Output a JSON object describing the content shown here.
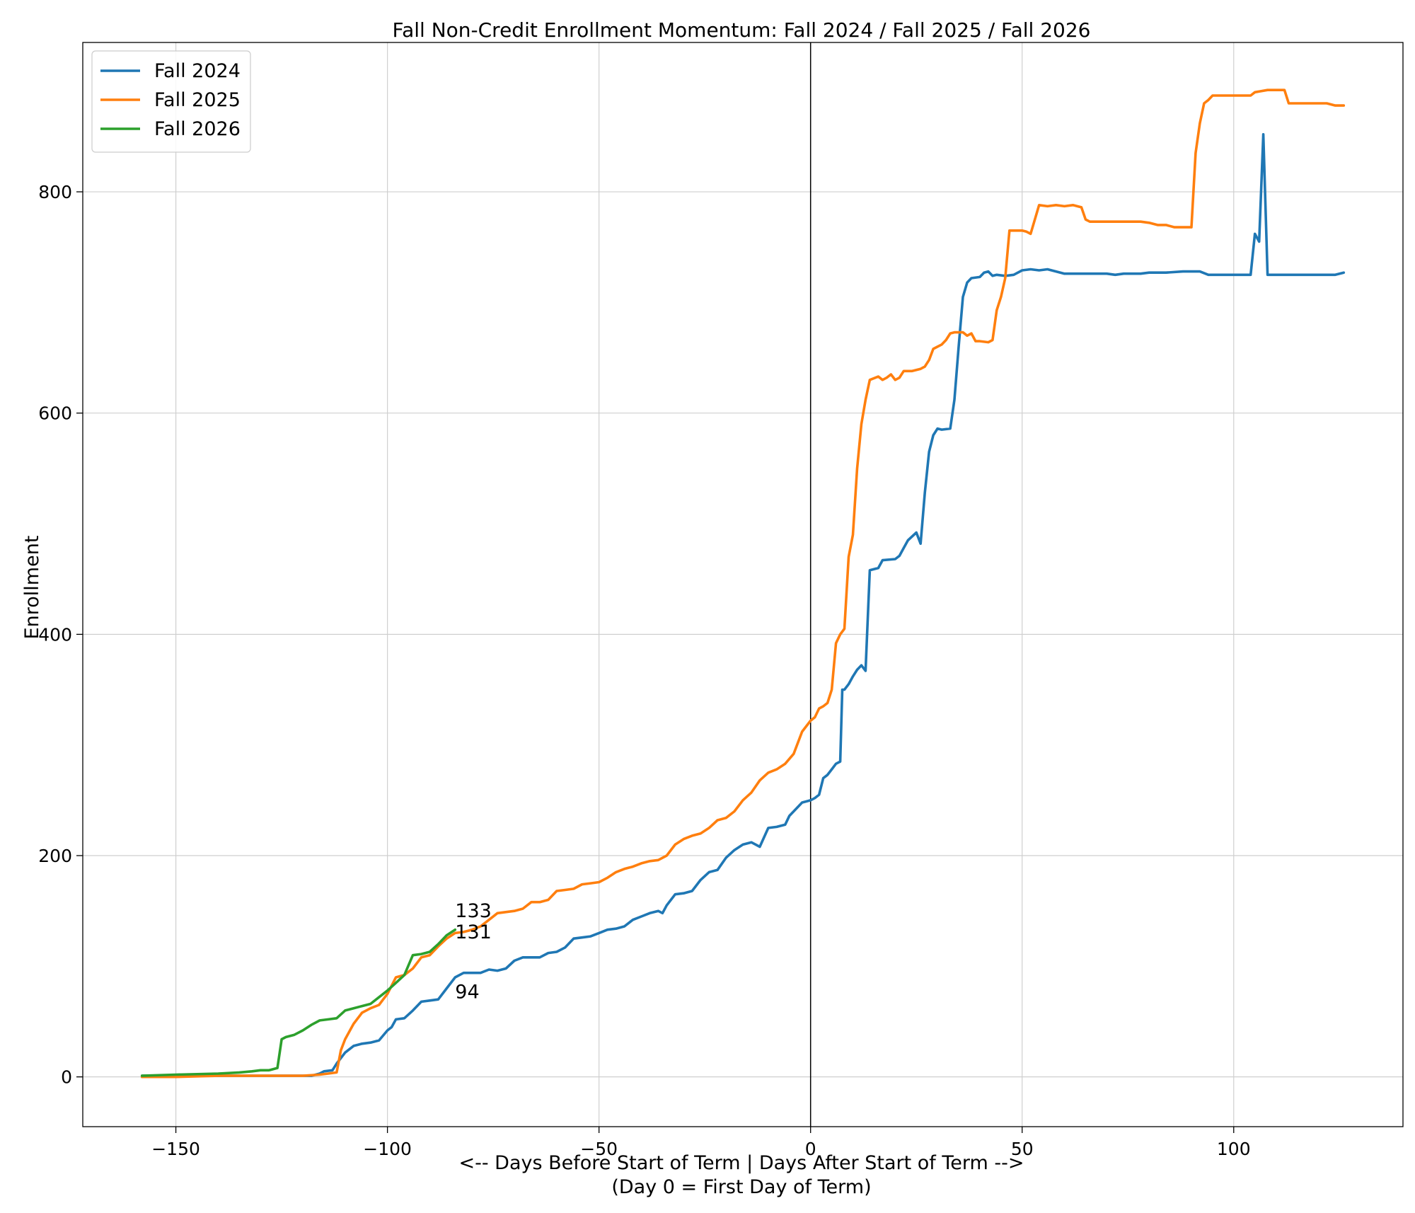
{
  "chart_data": {
    "type": "line",
    "title": "Fall Non-Credit Enrollment Momentum: Fall 2024 / Fall 2025 / Fall 2026",
    "xlabel_line1": "<-- Days Before Start of Term   |   Days After Start of Term -->",
    "xlabel_line2": "(Day 0 = First Day of Term)",
    "ylabel": "Enrollment",
    "xlim": [
      -172,
      140
    ],
    "ylim": [
      -45,
      935
    ],
    "xticks": [
      -150,
      -100,
      -50,
      0,
      50,
      100
    ],
    "xtick_labels": [
      "−150",
      "−100",
      "−50",
      "0",
      "50",
      "100"
    ],
    "yticks": [
      0,
      200,
      400,
      600,
      800
    ],
    "ytick_labels": [
      "0",
      "200",
      "400",
      "600",
      "800"
    ],
    "grid": true,
    "legend_position": "top-left",
    "vertical_reference_line_x": 0,
    "series": [
      {
        "name": "Fall 2024",
        "color": "#1f77b4",
        "points": [
          [
            -158,
            1
          ],
          [
            -150,
            1
          ],
          [
            -140,
            1
          ],
          [
            -130,
            1
          ],
          [
            -120,
            1
          ],
          [
            -118,
            1
          ],
          [
            -116,
            3
          ],
          [
            -115,
            5
          ],
          [
            -113,
            6
          ],
          [
            -112,
            12
          ],
          [
            -110,
            22
          ],
          [
            -108,
            28
          ],
          [
            -106,
            30
          ],
          [
            -104,
            31
          ],
          [
            -102,
            33
          ],
          [
            -100,
            42
          ],
          [
            -99,
            45
          ],
          [
            -98,
            52
          ],
          [
            -96,
            53
          ],
          [
            -94,
            60
          ],
          [
            -92,
            68
          ],
          [
            -90,
            69
          ],
          [
            -88,
            70
          ],
          [
            -86,
            80
          ],
          [
            -84,
            90
          ],
          [
            -82,
            94
          ],
          [
            -78,
            94
          ],
          [
            -76,
            97
          ],
          [
            -74,
            96
          ],
          [
            -72,
            98
          ],
          [
            -70,
            105
          ],
          [
            -68,
            108
          ],
          [
            -64,
            108
          ],
          [
            -62,
            112
          ],
          [
            -60,
            113
          ],
          [
            -58,
            117
          ],
          [
            -56,
            125
          ],
          [
            -54,
            126
          ],
          [
            -52,
            127
          ],
          [
            -50,
            130
          ],
          [
            -48,
            133
          ],
          [
            -46,
            134
          ],
          [
            -44,
            136
          ],
          [
            -42,
            142
          ],
          [
            -40,
            145
          ],
          [
            -38,
            148
          ],
          [
            -36,
            150
          ],
          [
            -35,
            148
          ],
          [
            -34,
            155
          ],
          [
            -32,
            165
          ],
          [
            -30,
            166
          ],
          [
            -28,
            168
          ],
          [
            -26,
            178
          ],
          [
            -24,
            185
          ],
          [
            -22,
            187
          ],
          [
            -20,
            198
          ],
          [
            -18,
            205
          ],
          [
            -16,
            210
          ],
          [
            -14,
            212
          ],
          [
            -12,
            208
          ],
          [
            -10,
            225
          ],
          [
            -8,
            226
          ],
          [
            -6,
            228
          ],
          [
            -5,
            236
          ],
          [
            -4,
            240
          ],
          [
            -2,
            248
          ],
          [
            0,
            250
          ],
          [
            1,
            252
          ],
          [
            2,
            255
          ],
          [
            3,
            270
          ],
          [
            4,
            273
          ],
          [
            5,
            278
          ],
          [
            6,
            283
          ],
          [
            7,
            285
          ],
          [
            7.5,
            350
          ],
          [
            8,
            350
          ],
          [
            9,
            355
          ],
          [
            10,
            362
          ],
          [
            11,
            368
          ],
          [
            12,
            372
          ],
          [
            13,
            367
          ],
          [
            14,
            458
          ],
          [
            16,
            460
          ],
          [
            17,
            467
          ],
          [
            20,
            468
          ],
          [
            21,
            471
          ],
          [
            22,
            478
          ],
          [
            23,
            485
          ],
          [
            25,
            492
          ],
          [
            26,
            482
          ],
          [
            27,
            528
          ],
          [
            28,
            565
          ],
          [
            29,
            580
          ],
          [
            30,
            586
          ],
          [
            31,
            585
          ],
          [
            33,
            586
          ],
          [
            34,
            612
          ],
          [
            35,
            660
          ],
          [
            36,
            705
          ],
          [
            37,
            718
          ],
          [
            38,
            722
          ],
          [
            40,
            723
          ],
          [
            41,
            727
          ],
          [
            42,
            728
          ],
          [
            43,
            724
          ],
          [
            44,
            725
          ],
          [
            46,
            724
          ],
          [
            48,
            725
          ],
          [
            50,
            729
          ],
          [
            52,
            730
          ],
          [
            54,
            729
          ],
          [
            56,
            730
          ],
          [
            58,
            728
          ],
          [
            60,
            726
          ],
          [
            64,
            726
          ],
          [
            70,
            726
          ],
          [
            72,
            725
          ],
          [
            74,
            726
          ],
          [
            78,
            726
          ],
          [
            80,
            727
          ],
          [
            84,
            727
          ],
          [
            88,
            728
          ],
          [
            92,
            728
          ],
          [
            94,
            725
          ],
          [
            100,
            725
          ],
          [
            104,
            725
          ],
          [
            105,
            762
          ],
          [
            106,
            755
          ],
          [
            107,
            852
          ],
          [
            108,
            725
          ],
          [
            112,
            725
          ],
          [
            116,
            725
          ],
          [
            120,
            725
          ],
          [
            124,
            725
          ],
          [
            126,
            727
          ]
        ]
      },
      {
        "name": "Fall 2025",
        "color": "#ff7f0e",
        "points": [
          [
            -158,
            0
          ],
          [
            -150,
            0
          ],
          [
            -140,
            1
          ],
          [
            -130,
            1
          ],
          [
            -120,
            1
          ],
          [
            -116,
            2
          ],
          [
            -114,
            3
          ],
          [
            -112,
            4
          ],
          [
            -111,
            24
          ],
          [
            -110,
            34
          ],
          [
            -108,
            48
          ],
          [
            -106,
            58
          ],
          [
            -104,
            62
          ],
          [
            -102,
            65
          ],
          [
            -101,
            70
          ],
          [
            -100,
            75
          ],
          [
            -98,
            90
          ],
          [
            -96,
            92
          ],
          [
            -94,
            98
          ],
          [
            -92,
            108
          ],
          [
            -90,
            110
          ],
          [
            -88,
            118
          ],
          [
            -86,
            125
          ],
          [
            -84,
            130
          ],
          [
            -82,
            131
          ],
          [
            -80,
            133
          ],
          [
            -78,
            136
          ],
          [
            -76,
            142
          ],
          [
            -74,
            148
          ],
          [
            -70,
            150
          ],
          [
            -68,
            152
          ],
          [
            -66,
            158
          ],
          [
            -64,
            158
          ],
          [
            -62,
            160
          ],
          [
            -60,
            168
          ],
          [
            -58,
            169
          ],
          [
            -56,
            170
          ],
          [
            -54,
            174
          ],
          [
            -52,
            175
          ],
          [
            -50,
            176
          ],
          [
            -48,
            180
          ],
          [
            -46,
            185
          ],
          [
            -44,
            188
          ],
          [
            -42,
            190
          ],
          [
            -40,
            193
          ],
          [
            -38,
            195
          ],
          [
            -36,
            196
          ],
          [
            -34,
            200
          ],
          [
            -32,
            210
          ],
          [
            -30,
            215
          ],
          [
            -28,
            218
          ],
          [
            -26,
            220
          ],
          [
            -24,
            225
          ],
          [
            -22,
            232
          ],
          [
            -20,
            234
          ],
          [
            -18,
            240
          ],
          [
            -16,
            250
          ],
          [
            -14,
            257
          ],
          [
            -12,
            268
          ],
          [
            -10,
            275
          ],
          [
            -8,
            278
          ],
          [
            -6,
            283
          ],
          [
            -4,
            292
          ],
          [
            -2,
            312
          ],
          [
            0,
            322
          ],
          [
            1,
            325
          ],
          [
            2,
            333
          ],
          [
            3,
            335
          ],
          [
            4,
            338
          ],
          [
            5,
            350
          ],
          [
            6,
            392
          ],
          [
            7,
            400
          ],
          [
            8,
            405
          ],
          [
            9,
            470
          ],
          [
            10,
            490
          ],
          [
            11,
            550
          ],
          [
            12,
            590
          ],
          [
            13,
            612
          ],
          [
            14,
            630
          ],
          [
            16,
            633
          ],
          [
            17,
            630
          ],
          [
            18,
            632
          ],
          [
            19,
            635
          ],
          [
            20,
            630
          ],
          [
            21,
            632
          ],
          [
            22,
            638
          ],
          [
            24,
            638
          ],
          [
            26,
            640
          ],
          [
            27,
            642
          ],
          [
            28,
            648
          ],
          [
            29,
            658
          ],
          [
            30,
            660
          ],
          [
            31,
            662
          ],
          [
            32,
            666
          ],
          [
            33,
            672
          ],
          [
            34,
            673
          ],
          [
            36,
            673
          ],
          [
            37,
            670
          ],
          [
            38,
            672
          ],
          [
            39,
            665
          ],
          [
            40,
            665
          ],
          [
            42,
            664
          ],
          [
            43,
            666
          ],
          [
            44,
            693
          ],
          [
            45,
            705
          ],
          [
            46,
            722
          ],
          [
            47,
            765
          ],
          [
            48,
            765
          ],
          [
            50,
            765
          ],
          [
            51,
            764
          ],
          [
            52,
            762
          ],
          [
            53,
            775
          ],
          [
            54,
            788
          ],
          [
            56,
            787
          ],
          [
            58,
            788
          ],
          [
            60,
            787
          ],
          [
            62,
            788
          ],
          [
            64,
            786
          ],
          [
            65,
            775
          ],
          [
            66,
            773
          ],
          [
            68,
            773
          ],
          [
            74,
            773
          ],
          [
            78,
            773
          ],
          [
            80,
            772
          ],
          [
            82,
            770
          ],
          [
            84,
            770
          ],
          [
            86,
            768
          ],
          [
            88,
            768
          ],
          [
            90,
            768
          ],
          [
            91,
            835
          ],
          [
            92,
            862
          ],
          [
            93,
            880
          ],
          [
            94,
            883
          ],
          [
            95,
            887
          ],
          [
            100,
            887
          ],
          [
            104,
            887
          ],
          [
            105,
            890
          ],
          [
            108,
            892
          ],
          [
            112,
            892
          ],
          [
            113,
            880
          ],
          [
            116,
            880
          ],
          [
            120,
            880
          ],
          [
            122,
            880
          ],
          [
            124,
            878
          ],
          [
            126,
            878
          ]
        ]
      },
      {
        "name": "Fall 2026",
        "color": "#2ca02c",
        "points": [
          [
            -158,
            1
          ],
          [
            -150,
            2
          ],
          [
            -140,
            3
          ],
          [
            -135,
            4
          ],
          [
            -132,
            5
          ],
          [
            -130,
            6
          ],
          [
            -128,
            6
          ],
          [
            -126,
            8
          ],
          [
            -125,
            34
          ],
          [
            -124,
            36
          ],
          [
            -122,
            38
          ],
          [
            -120,
            42
          ],
          [
            -118,
            47
          ],
          [
            -116,
            51
          ],
          [
            -114,
            52
          ],
          [
            -112,
            53
          ],
          [
            -110,
            60
          ],
          [
            -108,
            62
          ],
          [
            -106,
            64
          ],
          [
            -104,
            66
          ],
          [
            -102,
            72
          ],
          [
            -100,
            78
          ],
          [
            -98,
            85
          ],
          [
            -96,
            92
          ],
          [
            -94,
            110
          ],
          [
            -92,
            111
          ],
          [
            -90,
            113
          ],
          [
            -88,
            120
          ],
          [
            -86,
            128
          ],
          [
            -84,
            133
          ]
        ]
      }
    ],
    "annotations": [
      {
        "text": "133",
        "x": -84,
        "y": 150
      },
      {
        "text": "131",
        "x": -84,
        "y": 131
      },
      {
        "text": "94",
        "x": -84,
        "y": 77
      }
    ]
  }
}
